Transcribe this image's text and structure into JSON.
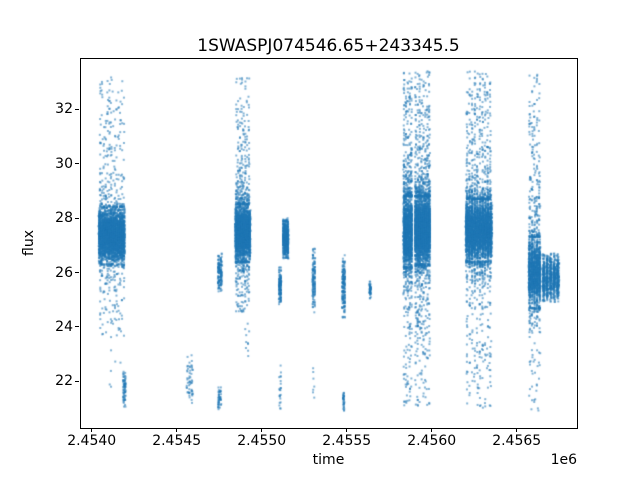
{
  "title": "1SWASPJ074546.65+243345.5",
  "axes": {
    "xlabel": "time",
    "ylabel": "flux",
    "offset_text": "1e6",
    "x_tick_labels": [
      "2.4540",
      "2.4545",
      "2.4550",
      "2.4555",
      "2.4560",
      "2.4565"
    ],
    "x_tick_values": [
      2454000,
      2454500,
      2455000,
      2455500,
      2456000,
      2456500
    ],
    "y_tick_labels": [
      "22",
      "24",
      "26",
      "28",
      "30",
      "32"
    ],
    "y_tick_values": [
      22,
      24,
      26,
      28,
      30,
      32
    ]
  },
  "chart_data": {
    "type": "scatter",
    "title": "1SWASPJ074546.65+243345.5",
    "xlabel": "time",
    "ylabel": "flux",
    "x_offset_factor": "1e6",
    "xlim": [
      2453930,
      2456865
    ],
    "ylim": [
      20.3,
      33.9
    ],
    "grid": false,
    "legend": false,
    "marker_color": "#1f77b4",
    "marker_alpha": 0.55,
    "marker_size_px": 2,
    "clusters": [
      {
        "t": [
          2454040,
          2454196
        ],
        "stripes": 14,
        "n": 3000,
        "flux": [
          26.3,
          28.4
        ],
        "dist": "gauss"
      },
      {
        "t": [
          2454045,
          2454195
        ],
        "stripes": 14,
        "n": 260,
        "flux": [
          28.4,
          33.2
        ],
        "dist": "tail_up"
      },
      {
        "t": [
          2454045,
          2454195
        ],
        "stripes": 14,
        "n": 150,
        "flux": [
          23.6,
          26.3
        ],
        "dist": "tail_down"
      },
      {
        "t": [
          2453995,
          2454190
        ],
        "stripes": 6,
        "n": 14,
        "flux": [
          21.8,
          25.5
        ],
        "dist": "uniform"
      },
      {
        "t": [
          2454183,
          2454202
        ],
        "stripes": 2,
        "n": 70,
        "flux": [
          20.9,
          22.4
        ],
        "dist": "gauss"
      },
      {
        "t": [
          2454556,
          2454596
        ],
        "stripes": 3,
        "n": 55,
        "flux": [
          21.0,
          23.0
        ],
        "dist": "gauss"
      },
      {
        "t": [
          2454740,
          2454768
        ],
        "stripes": 2,
        "n": 150,
        "flux": [
          25.2,
          26.7
        ],
        "dist": "gauss"
      },
      {
        "t": [
          2454742,
          2454762
        ],
        "stripes": 2,
        "n": 45,
        "flux": [
          20.9,
          21.8
        ],
        "dist": "gauss"
      },
      {
        "t": [
          2454843,
          2454935
        ],
        "stripes": 8,
        "n": 2200,
        "flux": [
          26.4,
          28.5
        ],
        "dist": "gauss"
      },
      {
        "t": [
          2454845,
          2454930
        ],
        "stripes": 8,
        "n": 300,
        "flux": [
          28.5,
          33.3
        ],
        "dist": "tail_up"
      },
      {
        "t": [
          2454845,
          2454930
        ],
        "stripes": 8,
        "n": 180,
        "flux": [
          24.5,
          26.4
        ],
        "dist": "tail_down"
      },
      {
        "t": [
          2454900,
          2454928
        ],
        "stripes": 2,
        "n": 10,
        "flux": [
          22.6,
          24.2
        ],
        "dist": "uniform"
      },
      {
        "t": [
          2455100,
          2455116
        ],
        "stripes": 2,
        "n": 130,
        "flux": [
          24.8,
          26.2
        ],
        "dist": "gauss"
      },
      {
        "t": [
          2455102,
          2455114
        ],
        "stripes": 2,
        "n": 22,
        "flux": [
          20.9,
          22.6
        ],
        "dist": "uniform"
      },
      {
        "t": [
          2455124,
          2455158
        ],
        "stripes": 4,
        "n": 600,
        "flux": [
          26.5,
          28.0
        ],
        "dist": "gauss"
      },
      {
        "t": [
          2455297,
          2455316
        ],
        "stripes": 2,
        "n": 130,
        "flux": [
          24.5,
          26.9
        ],
        "dist": "gauss"
      },
      {
        "t": [
          2455300,
          2455312
        ],
        "stripes": 2,
        "n": 7,
        "flux": [
          21.2,
          22.6
        ],
        "dist": "uniform"
      },
      {
        "t": [
          2455472,
          2455492
        ],
        "stripes": 2,
        "n": 170,
        "flux": [
          24.3,
          26.7
        ],
        "dist": "gauss"
      },
      {
        "t": [
          2455476,
          2455490
        ],
        "stripes": 1,
        "n": 32,
        "flux": [
          20.9,
          21.7
        ],
        "dist": "gauss"
      },
      {
        "t": [
          2455630,
          2455646
        ],
        "stripes": 1,
        "n": 55,
        "flux": [
          25.0,
          25.7
        ],
        "dist": "gauss"
      },
      {
        "t": [
          2455832,
          2455886
        ],
        "stripes": 5,
        "n": 1300,
        "flux": [
          26.2,
          28.8
        ],
        "dist": "gauss"
      },
      {
        "t": [
          2455832,
          2455886
        ],
        "stripes": 5,
        "n": 300,
        "flux": [
          28.8,
          33.4
        ],
        "dist": "tail_up"
      },
      {
        "t": [
          2455832,
          2455886
        ],
        "stripes": 5,
        "n": 190,
        "flux": [
          21.1,
          26.2
        ],
        "dist": "tail_down"
      },
      {
        "t": [
          2455900,
          2455992
        ],
        "stripes": 8,
        "n": 2600,
        "flux": [
          26.3,
          28.8
        ],
        "dist": "gauss"
      },
      {
        "t": [
          2455900,
          2455992
        ],
        "stripes": 8,
        "n": 430,
        "flux": [
          28.8,
          33.4
        ],
        "dist": "tail_up"
      },
      {
        "t": [
          2455900,
          2455992
        ],
        "stripes": 8,
        "n": 320,
        "flux": [
          21.1,
          26.3
        ],
        "dist": "tail_down"
      },
      {
        "t": [
          2456198,
          2456356
        ],
        "stripes": 10,
        "n": 3200,
        "flux": [
          26.4,
          28.7
        ],
        "dist": "gauss"
      },
      {
        "t": [
          2456200,
          2456352
        ],
        "stripes": 10,
        "n": 500,
        "flux": [
          28.7,
          33.4
        ],
        "dist": "tail_up"
      },
      {
        "t": [
          2456200,
          2456352
        ],
        "stripes": 10,
        "n": 380,
        "flux": [
          21.0,
          26.4
        ],
        "dist": "tail_down"
      },
      {
        "t": [
          2456568,
          2456642
        ],
        "stripes": 5,
        "n": 1200,
        "flux": [
          24.7,
          27.3
        ],
        "dist": "gauss"
      },
      {
        "t": [
          2456570,
          2456640
        ],
        "stripes": 5,
        "n": 240,
        "flux": [
          27.3,
          33.3
        ],
        "dist": "tail_up"
      },
      {
        "t": [
          2456570,
          2456640
        ],
        "stripes": 5,
        "n": 110,
        "flux": [
          20.8,
          24.7
        ],
        "dist": "tail_down"
      },
      {
        "t": [
          2456648,
          2456752
        ],
        "stripes": 5,
        "n": 900,
        "flux": [
          24.9,
          26.7
        ],
        "dist": "gauss"
      }
    ]
  }
}
